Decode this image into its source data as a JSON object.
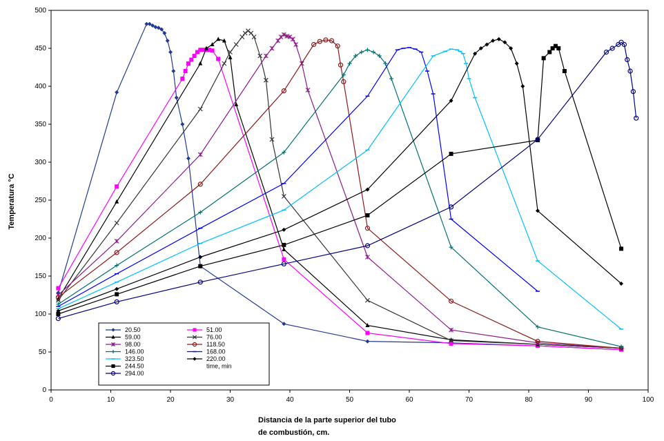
{
  "chart_data": {
    "type": "line",
    "xlabel_line1": "Distancia de la parte superior del tubo",
    "xlabel_line2": "de combustión, cm.",
    "ylabel": "Temperatura °C",
    "xlim": [
      0,
      100
    ],
    "ylim": [
      0,
      500
    ],
    "xticks": [
      "0",
      "10",
      "20",
      "30",
      "40",
      "50",
      "60",
      "70",
      "80",
      "90",
      "100"
    ],
    "yticks": [
      "0",
      "50",
      "100",
      "150",
      "200",
      "250",
      "300",
      "350",
      "400",
      "450",
      "500"
    ],
    "legend_title": "time, min",
    "series": [
      {
        "name": "20.50",
        "color": "#1F3A93",
        "marker": "diamond",
        "x": [
          1.2,
          11,
          16,
          16.5,
          17,
          17.5,
          18,
          18.5,
          19,
          19.5,
          20,
          20.5,
          21,
          22,
          23,
          25,
          39,
          53,
          67,
          81.5,
          95.5
        ],
        "y": [
          128,
          392,
          482,
          482,
          480,
          478,
          477,
          475,
          470,
          460,
          445,
          420,
          385,
          350,
          305,
          163,
          87,
          64,
          62,
          58,
          53
        ]
      },
      {
        "name": "51.00",
        "color": "#FF00FF",
        "marker": "square",
        "x": [
          1.2,
          11,
          22,
          22.5,
          23,
          23.5,
          24,
          24.5,
          25,
          25.5,
          26,
          26.5,
          27,
          28,
          39,
          53,
          67,
          81.5,
          95.5
        ],
        "y": [
          134,
          268,
          410,
          420,
          430,
          435,
          440,
          445,
          448,
          448,
          448,
          448,
          447,
          436,
          172,
          75,
          61,
          58,
          53
        ],
        "special": true
      },
      {
        "name": "59.00",
        "color": "#000000",
        "marker": "triangle",
        "x": [
          1.2,
          11,
          25,
          26,
          27,
          28,
          29,
          30,
          31,
          39,
          53,
          67,
          81.5,
          95.5
        ],
        "y": [
          120,
          248,
          430,
          450,
          455,
          462,
          460,
          438,
          376,
          185,
          85,
          66,
          60,
          55
        ]
      },
      {
        "name": "76.00",
        "color": "#333333",
        "marker": "x",
        "x": [
          1.2,
          11,
          25,
          29,
          30,
          31,
          32,
          32.5,
          33,
          33.5,
          34,
          35,
          36,
          37,
          39,
          53,
          67,
          81.5,
          95.5
        ],
        "y": [
          118,
          220,
          370,
          430,
          445,
          455,
          465,
          470,
          473,
          470,
          465,
          440,
          408,
          330,
          255,
          118,
          65,
          60,
          55
        ]
      },
      {
        "name": "98.00",
        "color": "#8B1A8B",
        "marker": "star",
        "x": [
          1.2,
          11,
          25,
          36,
          37,
          38,
          38.5,
          39,
          39.5,
          40,
          40.5,
          41,
          42,
          43,
          53,
          67,
          81.5,
          95.5
        ],
        "y": [
          125,
          196,
          310,
          440,
          450,
          460,
          465,
          468,
          466,
          465,
          462,
          455,
          430,
          395,
          175,
          79,
          62,
          55
        ]
      },
      {
        "name": "118.50",
        "color": "#8B1A1A",
        "marker": "circle",
        "x": [
          1.2,
          11,
          25,
          39,
          44,
          45,
          46,
          47,
          48,
          48.5,
          49,
          53,
          67,
          81.5,
          95.5
        ],
        "y": [
          122,
          181,
          271,
          394,
          455,
          459,
          461,
          460,
          453,
          428,
          406,
          213,
          117,
          64,
          55
        ]
      },
      {
        "name": "146.00",
        "color": "#007070",
        "marker": "plus",
        "x": [
          1.2,
          11,
          25,
          39,
          49,
          50,
          51,
          52,
          53,
          54,
          55,
          56,
          57,
          67,
          81.5,
          95.5
        ],
        "y": [
          113,
          164,
          234,
          313,
          415,
          430,
          440,
          445,
          448,
          445,
          440,
          430,
          410,
          188,
          83,
          57
        ]
      },
      {
        "name": "168.00",
        "color": "#0000FF",
        "marker": "dash",
        "x": [
          1.2,
          11,
          25,
          39,
          53,
          58,
          59,
          60,
          61,
          62,
          63,
          64,
          67,
          81.5
        ],
        "y": [
          110,
          153,
          213,
          272,
          387,
          448,
          450,
          451,
          449,
          445,
          420,
          390,
          225,
          130
        ]
      },
      {
        "name": "323.50",
        "color": "#00BFFF",
        "marker": "dash",
        "x": [
          1.2,
          11,
          25,
          39,
          53,
          64,
          66,
          67,
          68,
          68.5,
          69,
          69.5,
          70,
          71,
          81.5,
          95.5
        ],
        "y": [
          107,
          142,
          193,
          237,
          316,
          440,
          446,
          449,
          448,
          446,
          443,
          430,
          410,
          385,
          170,
          80
        ]
      },
      {
        "name": "220.00",
        "color": "#000000",
        "marker": "diamond",
        "x": [
          1.2,
          11,
          25,
          39,
          53,
          67,
          71,
          72,
          73,
          74,
          75,
          76,
          77,
          78,
          79,
          81.5,
          95.5
        ],
        "y": [
          104,
          133,
          175,
          211,
          264,
          381,
          443,
          450,
          455,
          460,
          462,
          458,
          450,
          430,
          400,
          236,
          140
        ]
      },
      {
        "name": "244.50",
        "color": "#000000",
        "marker": "square",
        "x": [
          1.2,
          11,
          25,
          39,
          53,
          67,
          81.5,
          82.5,
          83.5,
          84,
          84.5,
          85,
          86,
          95.5
        ],
        "y": [
          100,
          126,
          163,
          191,
          230,
          311,
          329,
          437,
          445,
          450,
          453,
          450,
          420,
          186
        ]
      },
      {
        "name": "294.00",
        "color": "#000080",
        "marker": "circle",
        "x": [
          1.2,
          11,
          25,
          39,
          53,
          67,
          81.5,
          93,
          94,
          95,
          95.5,
          96,
          96.5,
          97,
          97.5,
          98
        ],
        "y": [
          94,
          116,
          142,
          166,
          190,
          241,
          330,
          445,
          450,
          455,
          458,
          455,
          435,
          420,
          393,
          358
        ]
      }
    ]
  }
}
